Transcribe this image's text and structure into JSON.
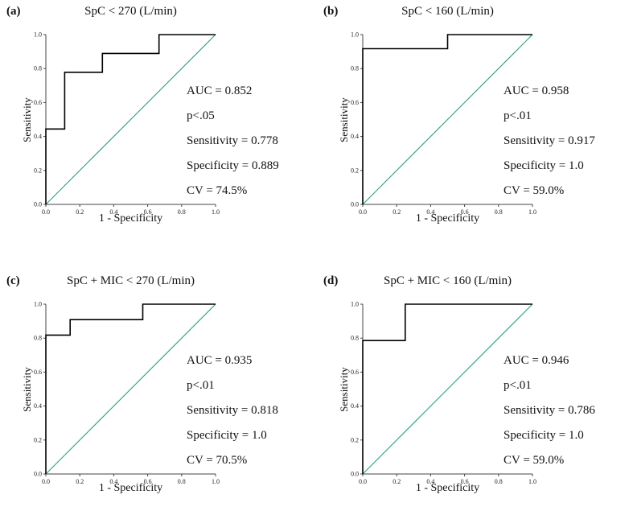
{
  "figure_title": "ROC curve panels",
  "chart_data": [
    {
      "type": "line",
      "panel_label": "(a)",
      "title": "SpC < 270 (L/min)",
      "xlabel": "1 - Specificity",
      "ylabel": "Sensitivity",
      "xlim": [
        0,
        1
      ],
      "ylim": [
        0,
        1
      ],
      "x_ticks": [
        0,
        0.2,
        0.4,
        0.6,
        0.8,
        1.0
      ],
      "y_ticks": [
        0,
        0.2,
        0.4,
        0.6,
        0.8,
        1.0
      ],
      "grid": false,
      "series": [
        {
          "name": "ROC curve",
          "color": "#000000",
          "width": 1.6,
          "points": [
            [
              0,
              0
            ],
            [
              0,
              0.444
            ],
            [
              0.111,
              0.444
            ],
            [
              0.111,
              0.778
            ],
            [
              0.333,
              0.778
            ],
            [
              0.333,
              0.889
            ],
            [
              0.667,
              0.889
            ],
            [
              0.667,
              1.0
            ],
            [
              1.0,
              1.0
            ]
          ]
        },
        {
          "name": "Reference diagonal",
          "color": "#3aa491",
          "width": 1.2,
          "points": [
            [
              0,
              0
            ],
            [
              1,
              1
            ]
          ]
        }
      ],
      "annotations": [
        "AUC = 0.852",
        "p<.05",
        "Sensitivity = 0.778",
        "Specificity = 0.889",
        "CV = 74.5%"
      ]
    },
    {
      "type": "line",
      "panel_label": "(b)",
      "title": "SpC < 160 (L/min)",
      "xlabel": "1 - Specificity",
      "ylabel": "Sensitivity",
      "xlim": [
        0,
        1
      ],
      "ylim": [
        0,
        1
      ],
      "x_ticks": [
        0,
        0.2,
        0.4,
        0.6,
        0.8,
        1.0
      ],
      "y_ticks": [
        0,
        0.2,
        0.4,
        0.6,
        0.8,
        1.0
      ],
      "grid": false,
      "series": [
        {
          "name": "ROC curve",
          "color": "#000000",
          "width": 1.6,
          "points": [
            [
              0,
              0
            ],
            [
              0,
              0.917
            ],
            [
              0.5,
              0.917
            ],
            [
              0.5,
              1.0
            ],
            [
              1.0,
              1.0
            ]
          ]
        },
        {
          "name": "Reference diagonal",
          "color": "#3aa491",
          "width": 1.2,
          "points": [
            [
              0,
              0
            ],
            [
              1,
              1
            ]
          ]
        }
      ],
      "annotations": [
        "AUC = 0.958",
        "p<.01",
        "Sensitivity = 0.917",
        "Specificity = 1.0",
        "CV = 59.0%"
      ]
    },
    {
      "type": "line",
      "panel_label": "(c)",
      "title": "SpC + MIC < 270 (L/min)",
      "xlabel": "1 - Specificity",
      "ylabel": "Sensitivity",
      "xlim": [
        0,
        1
      ],
      "ylim": [
        0,
        1
      ],
      "x_ticks": [
        0,
        0.2,
        0.4,
        0.6,
        0.8,
        1.0
      ],
      "y_ticks": [
        0,
        0.2,
        0.4,
        0.6,
        0.8,
        1.0
      ],
      "grid": false,
      "series": [
        {
          "name": "ROC curve",
          "color": "#000000",
          "width": 1.6,
          "points": [
            [
              0,
              0
            ],
            [
              0,
              0.818
            ],
            [
              0.143,
              0.818
            ],
            [
              0.143,
              0.909
            ],
            [
              0.571,
              0.909
            ],
            [
              0.571,
              1.0
            ],
            [
              1.0,
              1.0
            ]
          ]
        },
        {
          "name": "Reference diagonal",
          "color": "#3aa491",
          "width": 1.2,
          "points": [
            [
              0,
              0
            ],
            [
              1,
              1
            ]
          ]
        }
      ],
      "annotations": [
        "AUC = 0.935",
        "p<.01",
        "Sensitivity = 0.818",
        "Specificity = 1.0",
        "CV = 70.5%"
      ]
    },
    {
      "type": "line",
      "panel_label": "(d)",
      "title": "SpC + MIC < 160 (L/min)",
      "xlabel": "1 - Specificity",
      "ylabel": "Sensitivity",
      "xlim": [
        0,
        1
      ],
      "ylim": [
        0,
        1
      ],
      "x_ticks": [
        0,
        0.2,
        0.4,
        0.6,
        0.8,
        1.0
      ],
      "y_ticks": [
        0,
        0.2,
        0.4,
        0.6,
        0.8,
        1.0
      ],
      "grid": false,
      "series": [
        {
          "name": "ROC curve",
          "color": "#000000",
          "width": 1.6,
          "points": [
            [
              0,
              0
            ],
            [
              0,
              0.786
            ],
            [
              0.25,
              0.786
            ],
            [
              0.25,
              1.0
            ],
            [
              1.0,
              1.0
            ]
          ]
        },
        {
          "name": "Reference diagonal",
          "color": "#3aa491",
          "width": 1.2,
          "points": [
            [
              0,
              0
            ],
            [
              1,
              1
            ]
          ]
        }
      ],
      "annotations": [
        "AUC = 0.946",
        "p<.01",
        "Sensitivity = 0.786",
        "Specificity = 1.0",
        "CV = 59.0%"
      ]
    }
  ]
}
